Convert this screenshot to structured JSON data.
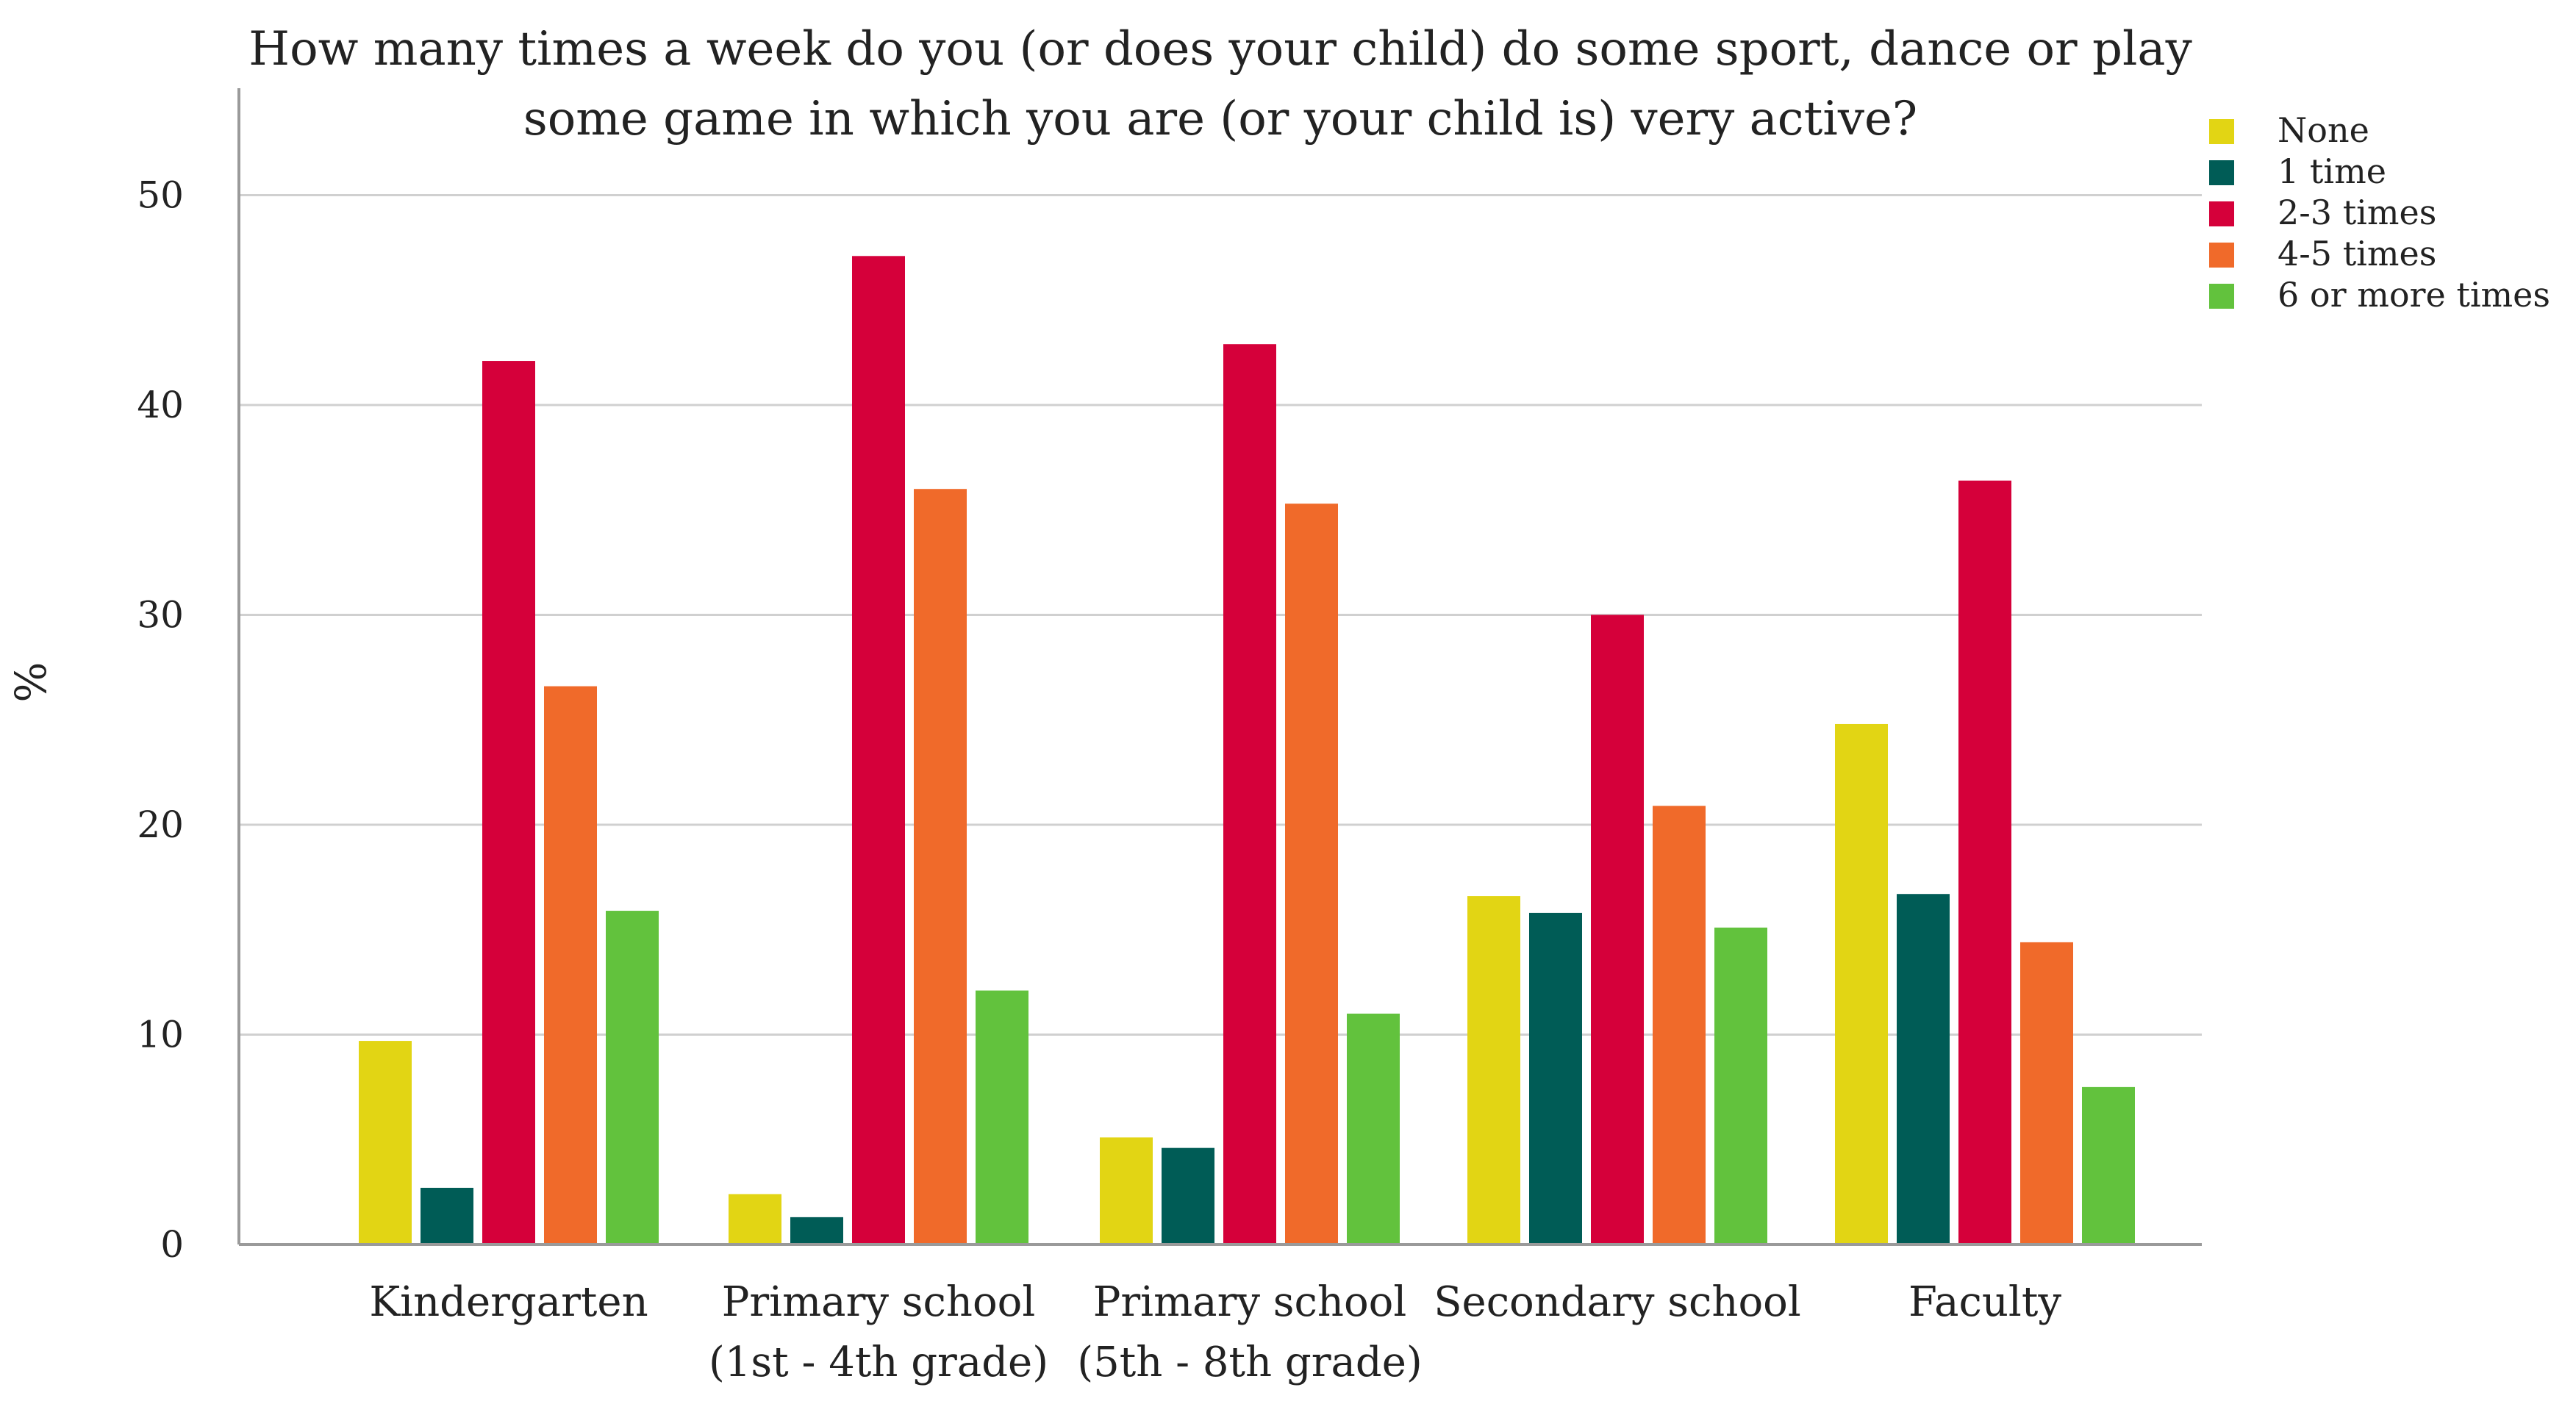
{
  "chart_data": {
    "type": "bar",
    "title_lines": [
      "How many times a week do you (or does your child) do some sport, dance or play",
      "some game in which you are (or your child is) very active?"
    ],
    "ylabel": "%",
    "xlabel": "",
    "ylim": [
      0,
      55
    ],
    "yticks": [
      0,
      10,
      20,
      30,
      40,
      50
    ],
    "grid": true,
    "legend_position": "top-right",
    "categories": [
      [
        "Kindergarten"
      ],
      [
        "Primary school",
        "(1st - 4th grade)"
      ],
      [
        "Primary school",
        "(5th - 8th grade)"
      ],
      [
        "Secondary school"
      ],
      [
        "Faculty"
      ]
    ],
    "series": [
      {
        "name": "None",
        "color": "#e2d514",
        "values": [
          9.7,
          2.4,
          5.1,
          16.6,
          24.8
        ]
      },
      {
        "name": "1 time",
        "color": "#005c56",
        "values": [
          2.7,
          1.3,
          4.6,
          15.8,
          16.7
        ]
      },
      {
        "name": "2-3 times",
        "color": "#d5003a",
        "values": [
          42.1,
          47.1,
          42.9,
          30.0,
          36.4
        ]
      },
      {
        "name": "4-5 times",
        "color": "#f06a2a",
        "values": [
          26.6,
          36.0,
          35.3,
          20.9,
          14.4
        ]
      },
      {
        "name": "6 or more times",
        "color": "#62c23d",
        "values": [
          15.9,
          12.1,
          11.0,
          15.1,
          7.5
        ]
      }
    ]
  }
}
